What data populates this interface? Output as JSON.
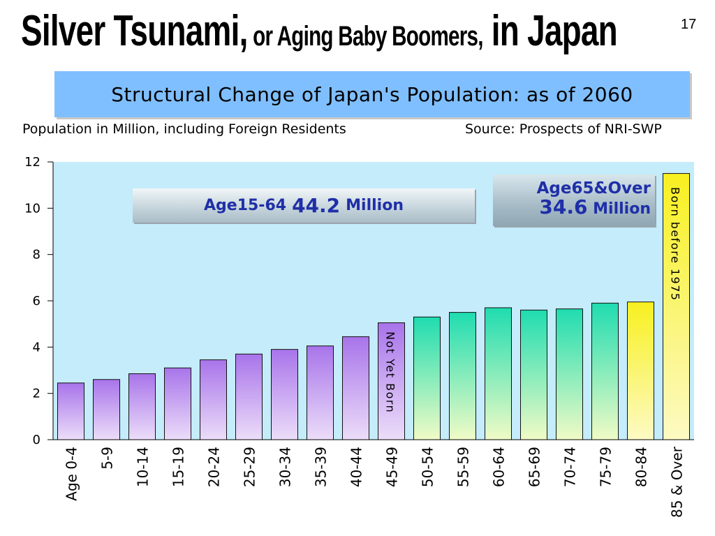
{
  "slide": {
    "title_part1": "Silver Tsunami,",
    "title_part2": " or Aging Baby Boomers,",
    "title_part3": " in Japan",
    "page_number": "17",
    "banner": "Structural Change of Japan's Population: as of 2060",
    "subtitle_left": "Population in Million, including Foreign Residents",
    "subtitle_right": "Source: Prospects of NRI-SWP"
  },
  "annotations": {
    "working_label": "Age15-64",
    "working_value": "44.2",
    "working_unit": "Million",
    "elderly_label": "Age65&Over",
    "elderly_value": "34.6",
    "elderly_unit": "Million",
    "not_yet_born": "Not Yet Born",
    "born_before": "Born before 1975"
  },
  "colors": {
    "plot_background": "#c4ecfa",
    "young_bar_top": "#a874ea",
    "young_bar_bottom": "#ecddf9",
    "middle_bar_top": "#1fdcb0",
    "middle_bar_bottom": "#f0fbc6",
    "old_bar_top": "#f8f020",
    "old_bar_bottom": "#fdfac4",
    "annotation_text": "#1f2fa8"
  },
  "chart_data": {
    "type": "bar",
    "categories": [
      "Age 0-4",
      "5-9",
      "10-14",
      "15-19",
      "20-24",
      "25-29",
      "30-34",
      "35-39",
      "40-44",
      "45-49",
      "50-54",
      "55-59",
      "60-64",
      "65-69",
      "70-74",
      "75-79",
      "80-84",
      "85 & Over"
    ],
    "values": [
      2.45,
      2.6,
      2.85,
      3.1,
      3.45,
      3.7,
      3.9,
      4.05,
      4.45,
      5.05,
      5.3,
      5.5,
      5.7,
      5.6,
      5.65,
      5.9,
      5.95,
      11.5
    ],
    "color_groups": [
      "young",
      "young",
      "young",
      "young",
      "young",
      "young",
      "young",
      "young",
      "young",
      "young",
      "middle",
      "middle",
      "middle",
      "middle",
      "middle",
      "middle",
      "old",
      "old"
    ],
    "title": "",
    "xlabel": "",
    "ylabel": "",
    "ylim": [
      0,
      12
    ],
    "yticks": [
      0,
      2,
      4,
      6,
      8,
      10,
      12
    ],
    "grid": false,
    "legend": false
  }
}
